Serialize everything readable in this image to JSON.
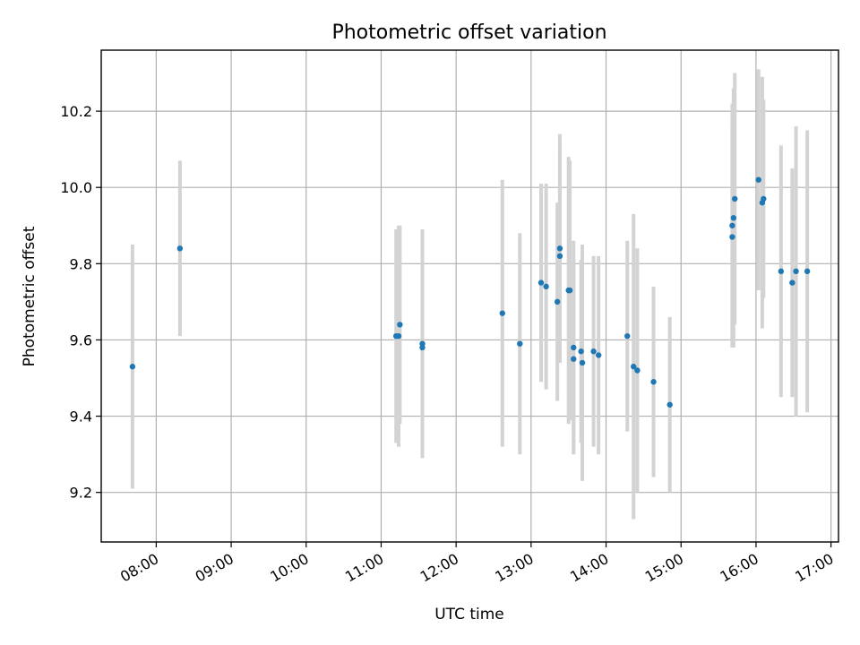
{
  "chart_data": {
    "type": "scatter",
    "title": "Photometric offset variation",
    "xlabel": "UTC time",
    "ylabel": "Photometric offset",
    "grid": true,
    "x_unit": "time (UTC)",
    "xlim": [
      "07:16",
      "17:06"
    ],
    "ylim": [
      9.07,
      10.36
    ],
    "x_ticks": [
      "08:00",
      "09:00",
      "10:00",
      "11:00",
      "12:00",
      "13:00",
      "14:00",
      "15:00",
      "16:00",
      "17:00"
    ],
    "y_ticks": [
      9.2,
      9.4,
      9.6,
      9.8,
      10.0,
      10.2
    ],
    "point_color": "#1f77b4",
    "errorbar_color": "#d3d3d3",
    "series": [
      {
        "points": [
          {
            "x": "07:41",
            "y": 9.53,
            "err": 0.32
          },
          {
            "x": "08:19",
            "y": 9.84,
            "err": 0.23
          },
          {
            "x": "11:12",
            "y": 9.61,
            "err": 0.28
          },
          {
            "x": "11:14",
            "y": 9.61,
            "err": 0.29
          },
          {
            "x": "11:15",
            "y": 9.64,
            "err": 0.26
          },
          {
            "x": "11:33",
            "y": 9.59,
            "err": 0.3
          },
          {
            "x": "11:33",
            "y": 9.58,
            "err": 0.28
          },
          {
            "x": "12:37",
            "y": 9.67,
            "err": 0.35
          },
          {
            "x": "12:51",
            "y": 9.59,
            "err": 0.29
          },
          {
            "x": "13:08",
            "y": 9.75,
            "err": 0.26
          },
          {
            "x": "13:12",
            "y": 9.74,
            "err": 0.27
          },
          {
            "x": "13:21",
            "y": 9.7,
            "err": 0.26
          },
          {
            "x": "13:23",
            "y": 9.84,
            "err": 0.3
          },
          {
            "x": "13:23",
            "y": 9.82,
            "err": 0.28
          },
          {
            "x": "13:30",
            "y": 9.73,
            "err": 0.35
          },
          {
            "x": "13:31",
            "y": 9.73,
            "err": 0.34
          },
          {
            "x": "13:34",
            "y": 9.58,
            "err": 0.28
          },
          {
            "x": "13:34",
            "y": 9.55,
            "err": 0.25
          },
          {
            "x": "13:40",
            "y": 9.57,
            "err": 0.24
          },
          {
            "x": "13:41",
            "y": 9.54,
            "err": 0.31
          },
          {
            "x": "13:50",
            "y": 9.57,
            "err": 0.25
          },
          {
            "x": "13:54",
            "y": 9.56,
            "err": 0.26
          },
          {
            "x": "14:17",
            "y": 9.61,
            "err": 0.25
          },
          {
            "x": "14:22",
            "y": 9.53,
            "err": 0.4
          },
          {
            "x": "14:25",
            "y": 9.52,
            "err": 0.32
          },
          {
            "x": "14:38",
            "y": 9.49,
            "err": 0.25
          },
          {
            "x": "14:51",
            "y": 9.43,
            "err": 0.23
          },
          {
            "x": "15:41",
            "y": 9.87,
            "err": 0.29
          },
          {
            "x": "15:41",
            "y": 9.9,
            "err": 0.32
          },
          {
            "x": "15:42",
            "y": 9.92,
            "err": 0.34
          },
          {
            "x": "15:43",
            "y": 9.97,
            "err": 0.33
          },
          {
            "x": "16:02",
            "y": 10.02,
            "err": 0.29
          },
          {
            "x": "16:05",
            "y": 9.96,
            "err": 0.33
          },
          {
            "x": "16:06",
            "y": 9.97,
            "err": 0.26
          },
          {
            "x": "16:20",
            "y": 9.78,
            "err": 0.33
          },
          {
            "x": "16:29",
            "y": 9.75,
            "err": 0.3
          },
          {
            "x": "16:32",
            "y": 9.78,
            "err": 0.38
          },
          {
            "x": "16:41",
            "y": 9.78,
            "err": 0.37
          }
        ]
      }
    ]
  }
}
